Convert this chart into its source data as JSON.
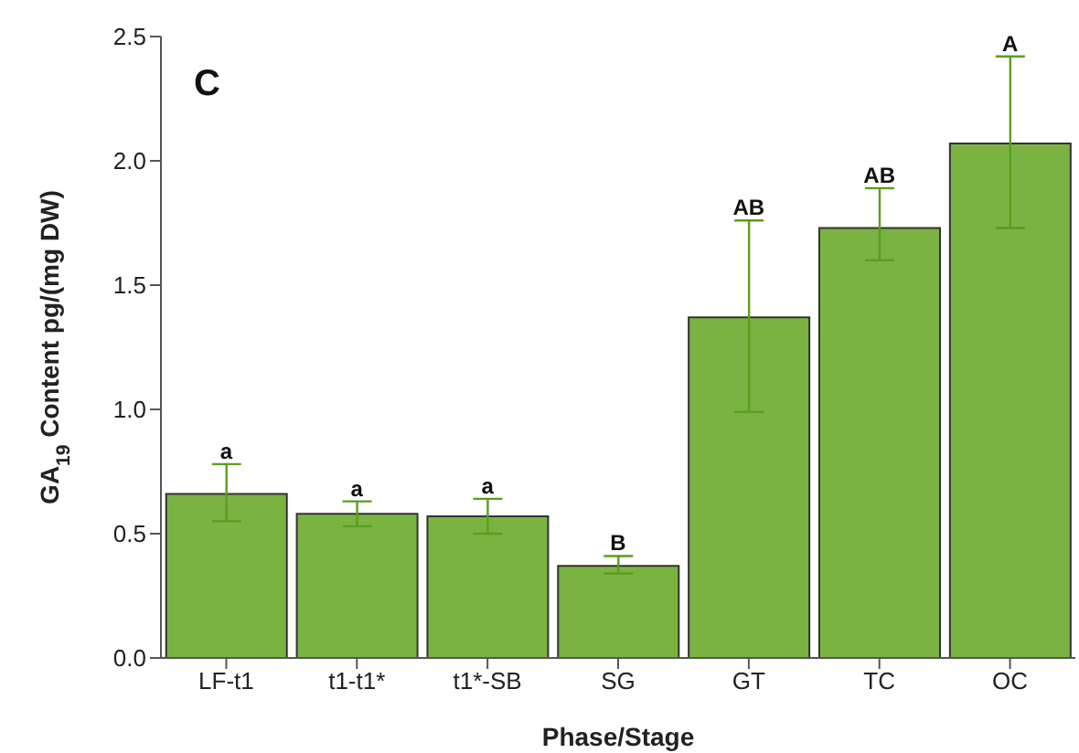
{
  "chart_data": {
    "type": "bar",
    "xlabel": "Phase/Stage",
    "ylabel": "GA$_{19}$ Content pg/(mg DW)",
    "categories": [
      "LF-t1",
      "t1-t1*",
      "t1*-SB",
      "SG",
      "GT",
      "TC",
      "OC"
    ],
    "values": [
      0.66,
      0.58,
      0.57,
      0.37,
      1.37,
      1.73,
      2.07
    ],
    "errors": [
      [
        0.55,
        0.78
      ],
      [
        0.53,
        0.63
      ],
      [
        0.5,
        0.64
      ],
      [
        0.34,
        0.41
      ],
      [
        0.99,
        1.76
      ],
      [
        1.6,
        1.89
      ],
      [
        1.73,
        2.42
      ]
    ],
    "color": "#7ab342",
    "grid": false,
    "legend": false,
    "ylim": [
      0,
      2.5
    ],
    "yticks": [
      {
        "value": 0,
        "label": "0.0"
      },
      {
        "value": 0.5,
        "label": "0.5"
      },
      {
        "value": 1,
        "label": "1.0"
      },
      {
        "value": 1.5,
        "label": "1.5"
      },
      {
        "value": 2,
        "label": "2.0"
      },
      {
        "value": 2.5,
        "label": "2.5"
      }
    ],
    "annotations": [
      "C",
      {
        "text": "a",
        "x": "LF-t1",
        "y": 0.78
      },
      {
        "text": "a",
        "x": "t1-t1*",
        "y": 0.63
      },
      {
        "text": "a",
        "x": "t1*-SB",
        "y": 0.64
      },
      {
        "text": "B",
        "x": "SG",
        "y": 0.41
      },
      {
        "text": "AB",
        "x": "GT",
        "y": 1.76
      },
      {
        "text": "AB",
        "x": "TC",
        "y": 1.89
      },
      {
        "text": "A",
        "x": "OC",
        "y": 2.42
      }
    ]
  }
}
